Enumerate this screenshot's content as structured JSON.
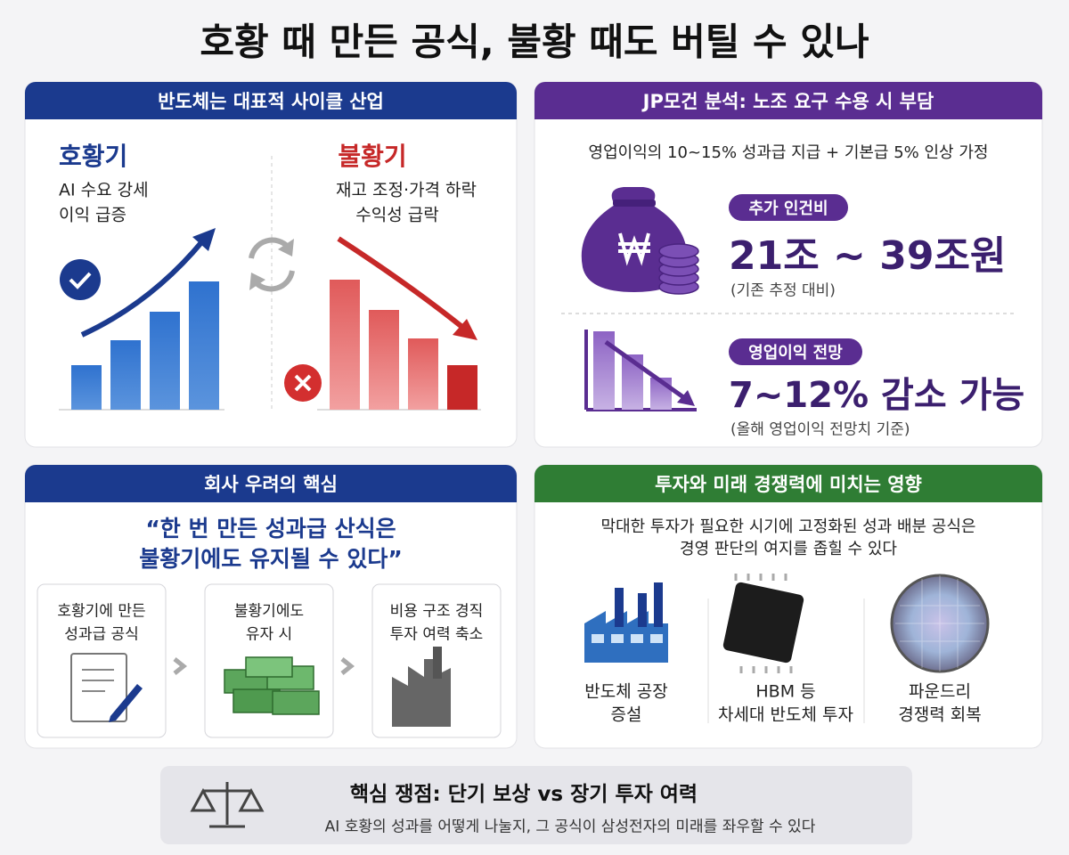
{
  "title": "호황 때 만든 공식, 불황 때도 버틸 수 있나",
  "panels": {
    "cycle": {
      "header": "반도체는 대표적 사이클 산업",
      "boom": {
        "label": "호황기",
        "lines": [
          "AI 수요 강세",
          "이익 급증"
        ]
      },
      "bust": {
        "label": "불황기",
        "lines": [
          "재고 조정·가격 하락",
          "수익성 급락"
        ]
      }
    },
    "jp": {
      "header": "JP모건 분석: 노조 요구 수용 시 부담",
      "assumption": "영업이익의 10~15% 성과급 지급 + 기본급 5% 인상 가정",
      "cost": {
        "tag": "추가 인건비",
        "value": "21조 ~ 39조원",
        "note": "(기존 추정 대비)"
      },
      "profit": {
        "tag": "영업이익 전망",
        "value": "7~12% 감소 가능",
        "note": "(올해 영업이익 전망치 기준)"
      }
    },
    "concern": {
      "header": "회사 우려의 핵심",
      "quote": [
        "“한 번 만든 성과급 산식은",
        "불황기에도 유지될 수 있다”"
      ],
      "steps": [
        [
          "호황기에 만든",
          "성과급 공식"
        ],
        [
          "불황기에도",
          "유자 시"
        ],
        [
          "비용 구조 경직",
          "투자 여력 축소"
        ]
      ]
    },
    "invest": {
      "header": "투자와 미래 경쟁력에 미치는 영향",
      "lead": [
        "막대한 투자가 필요한 시기에 고정화된 성과 배분 공식은",
        "경영 판단의 여지를 좁힐 수 있다"
      ],
      "items": [
        [
          "반도체 공장",
          "증설"
        ],
        [
          "HBM 등",
          "차세대 반도체 투자"
        ],
        [
          "파운드리",
          "경쟁력 회복"
        ]
      ]
    }
  },
  "footer": {
    "title": "핵심 쟁점: 단기 보상 vs 장기 투자 여력",
    "text": "AI 호황의 성과를 어떻게 나눌지, 그 공식이 삼성전자의 미래를 좌우할 수 있다"
  }
}
